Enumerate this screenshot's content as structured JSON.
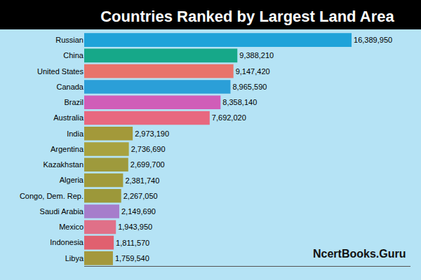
{
  "chart_data": {
    "type": "bar",
    "title": "Countries Ranked by Largest Land Area",
    "orientation": "horizontal",
    "categories": [
      "Russian",
      "China",
      "United States",
      "Canada",
      "Brazil",
      "Australia",
      "India",
      "Argentina",
      "Kazakhstan",
      "Algeria",
      "Congo, Dem. Rep.",
      "Saudi Arabia",
      "Mexico",
      "Indonesia",
      "Libya"
    ],
    "values": [
      16389950,
      9388210,
      9147420,
      8965590,
      8358140,
      7692020,
      2973190,
      2736690,
      2699700,
      2381740,
      2267050,
      2149690,
      1943950,
      1811570,
      1759540
    ],
    "value_labels": [
      "16,389,950",
      "9,388,210",
      "9,147,420",
      "8,965,590",
      "8,358,140",
      "7,692,020",
      "2,973,190",
      "2,736,690",
      "2,699,700",
      "2,381,740",
      "2,267,050",
      "2,149,690",
      "1,943,950",
      "1,811,570",
      "1,759,540"
    ],
    "colors": [
      "#1fa3d9",
      "#16a889",
      "#e8736b",
      "#2b9fd8",
      "#d05db8",
      "#e8687f",
      "#a3993a",
      "#a8a23f",
      "#9e9a3c",
      "#a19b3b",
      "#9c983a",
      "#a67dcb",
      "#e07088",
      "#e0606f",
      "#a4983c"
    ],
    "xlim": [
      0,
      20000000
    ],
    "data_labels": true,
    "tick_labels": "y",
    "grid": false,
    "annotations": [
      {
        "text": "NcertBooks.Guru"
      }
    ]
  }
}
